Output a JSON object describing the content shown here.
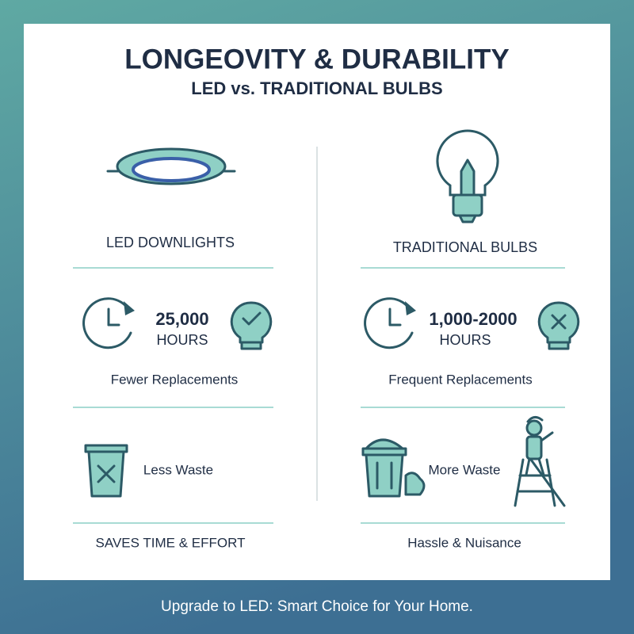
{
  "header": {
    "title": "LONGEOVITY & DURABILITY",
    "subtitle": "LED vs. TRADITIONAL BULBS"
  },
  "columns": [
    {
      "heading": "LED DOWNLIGHTS",
      "hours": "25,000",
      "hours_unit": "HOURS",
      "replacements": "Fewer Replacements",
      "waste": "Less Waste",
      "effort": "SAVES TIME & EFFORT"
    },
    {
      "heading": "TRADITIONAL BULBS",
      "hours": "1,000-2000",
      "hours_unit": "HOURS",
      "replacements": "Frequent Replacements",
      "waste": "More Waste",
      "effort": "Hassle & Nuisance"
    }
  ],
  "footer": "Upgrade to LED: Smart Choice for Your Home."
}
